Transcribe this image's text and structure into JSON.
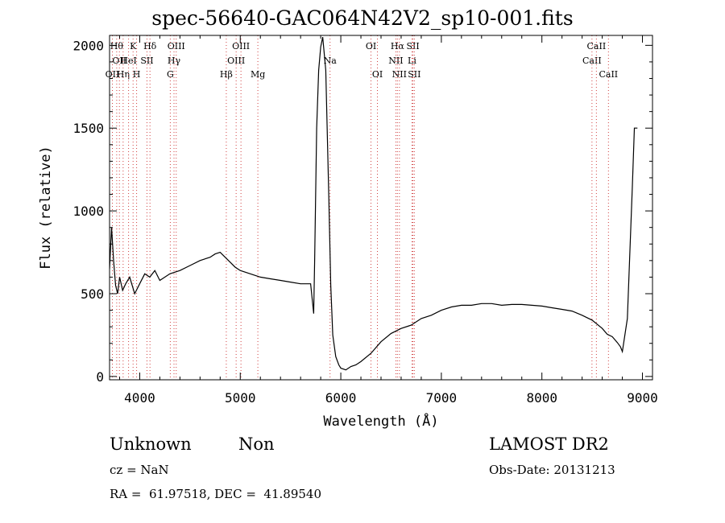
{
  "title": "spec-56640-GAC064N42V2_sp10-001.fits",
  "info": {
    "class": "Unknown",
    "subclass": "Non",
    "cz": "cz = NaN",
    "radec": "RA =  61.97518, DEC =  41.89540",
    "survey": "LAMOST DR2",
    "obsdate": "Obs-Date: 20131213"
  },
  "chart_data": {
    "type": "line",
    "title": "spec-56640-GAC064N42V2_sp10-001.fits",
    "xlabel": "Wavelength (Å)",
    "ylabel": "Flux (relative)",
    "xlim": [
      3700,
      9100
    ],
    "ylim": [
      -20,
      2060
    ],
    "xticks": [
      4000,
      5000,
      6000,
      7000,
      8000,
      9000
    ],
    "yticks": [
      0,
      500,
      1000,
      1500,
      2000
    ],
    "grid": false,
    "series": [
      {
        "x": [
          3700,
          3720,
          3740,
          3760,
          3780,
          3800,
          3830,
          3860,
          3900,
          3950,
          4000,
          4050,
          4100,
          4150,
          4200,
          4300,
          4400,
          4500,
          4600,
          4700,
          4750,
          4800,
          4850,
          4900,
          4950,
          5000,
          5100,
          5200,
          5300,
          5400,
          5500,
          5600,
          5700,
          5730,
          5740,
          5760,
          5780,
          5800,
          5820,
          5850,
          5880,
          5900,
          5920,
          5950,
          5980,
          6000,
          6050,
          6100,
          6150,
          6200,
          6300,
          6400,
          6500,
          6600,
          6700,
          6800,
          6900,
          7000,
          7100,
          7200,
          7300,
          7400,
          7500,
          7600,
          7700,
          7800,
          7900,
          8000,
          8100,
          8200,
          8300,
          8400,
          8500,
          8600,
          8650,
          8700,
          8750,
          8780,
          8800,
          8850,
          8900,
          8920,
          8950
        ],
        "y": [
          650,
          900,
          700,
          550,
          500,
          600,
          520,
          560,
          600,
          500,
          560,
          620,
          600,
          640,
          580,
          620,
          640,
          670,
          700,
          720,
          740,
          750,
          720,
          690,
          660,
          640,
          620,
          600,
          590,
          580,
          570,
          560,
          560,
          380,
          700,
          1500,
          1850,
          1990,
          2050,
          1850,
          1100,
          550,
          250,
          120,
          70,
          50,
          40,
          60,
          70,
          90,
          140,
          210,
          260,
          290,
          310,
          350,
          370,
          400,
          420,
          430,
          430,
          440,
          440,
          430,
          435,
          435,
          430,
          425,
          415,
          405,
          395,
          370,
          340,
          290,
          255,
          240,
          205,
          180,
          150,
          350,
          1150,
          1500,
          1500
        ]
      }
    ],
    "lines": [
      {
        "w": 3771,
        "label": "Hθ",
        "row": 0
      },
      {
        "w": 3798,
        "label": "OII",
        "row": 1
      },
      {
        "w": 3728,
        "label": "OII",
        "row": 2
      },
      {
        "w": 3835,
        "label": "Hη",
        "row": 2
      },
      {
        "w": 3889,
        "label": "HeI",
        "row": 1
      },
      {
        "w": 3934,
        "label": "K",
        "row": 0
      },
      {
        "w": 3969,
        "label": "H",
        "row": 2
      },
      {
        "w": 4072,
        "label": "SII",
        "row": 1
      },
      {
        "w": 4102,
        "label": "Hδ",
        "row": 0
      },
      {
        "w": 4304,
        "label": "G",
        "row": 2
      },
      {
        "w": 4341,
        "label": "Hγ",
        "row": 1
      },
      {
        "w": 4363,
        "label": "OIII",
        "row": 0
      },
      {
        "w": 4861,
        "label": "Hβ",
        "row": 2
      },
      {
        "w": 4959,
        "label": "OIII",
        "row": 1
      },
      {
        "w": 5007,
        "label": "OIII",
        "row": 0
      },
      {
        "w": 5175,
        "label": "Mg",
        "row": 2
      },
      {
        "w": 5893,
        "label": "Na",
        "row": 1
      },
      {
        "w": 6300,
        "label": "OI",
        "row": 0
      },
      {
        "w": 6364,
        "label": "OI",
        "row": 2
      },
      {
        "w": 6548,
        "label": "NII",
        "row": 1
      },
      {
        "w": 6563,
        "label": "Hα",
        "row": 0
      },
      {
        "w": 6583,
        "label": "NII",
        "row": 2
      },
      {
        "w": 6708,
        "label": "Li",
        "row": 1
      },
      {
        "w": 6717,
        "label": "SII",
        "row": 0
      },
      {
        "w": 6731,
        "label": "SII",
        "row": 2
      },
      {
        "w": 8498,
        "label": "CaII",
        "row": 1
      },
      {
        "w": 8542,
        "label": "CaII",
        "row": 0
      },
      {
        "w": 8662,
        "label": "CaII",
        "row": 2
      }
    ]
  }
}
